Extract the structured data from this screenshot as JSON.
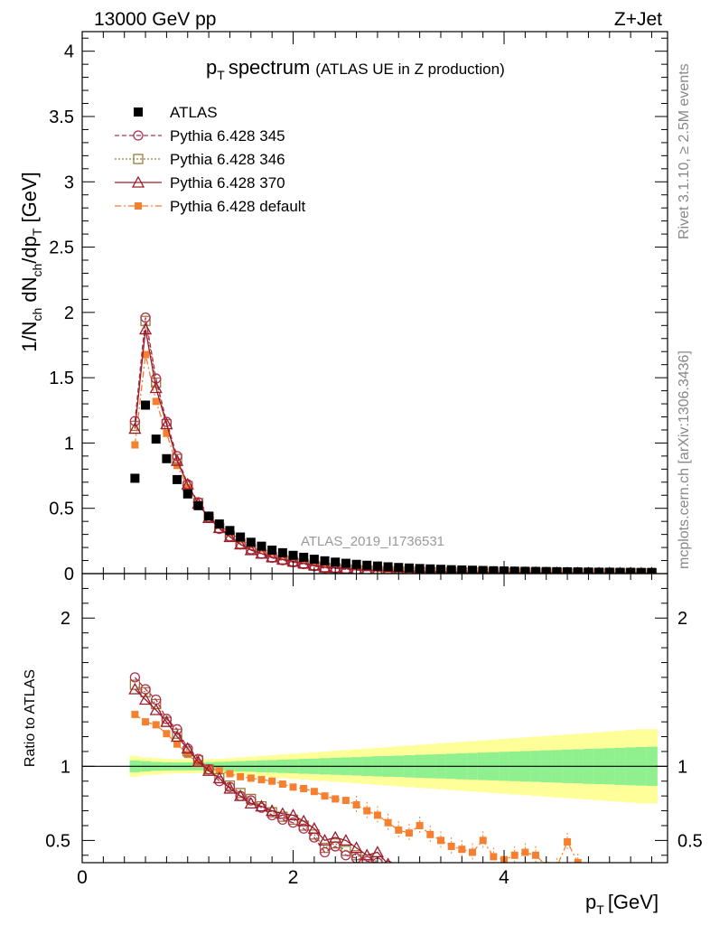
{
  "header": {
    "energy_label": "13000 GeV pp",
    "process_label": "Z+Jet"
  },
  "side_text": {
    "rivet": "Rivet 3.1.10, ≥ 2.5M events",
    "mcplots": "mcplots.cern.ch [arXiv:1306.3436]"
  },
  "chart_data": {
    "type": "scatter",
    "title_main": "p",
    "title_sub": "T",
    "title_word": "spectrum",
    "title_note": "(ATLAS UE in Z production)",
    "watermark": "ATLAS_2019_I1736531",
    "xlabel": "p",
    "xlabel_sub": "T",
    "xlabel_unit": "[GeV]",
    "ylabel": "1/N_ch dN_ch/dp_T [GeV]",
    "ratio_ylabel": "Ratio to ATLAS",
    "xlim": [
      0,
      5.55
    ],
    "main_ylim": [
      0,
      4.15
    ],
    "ratio_ylim": [
      0.35,
      2.3
    ],
    "x_ticks": [
      "0",
      "2",
      "4"
    ],
    "main_y_ticks": [
      "0",
      "0.5",
      "1",
      "1.5",
      "2",
      "2.5",
      "3",
      "3.5",
      "4"
    ],
    "ratio_y_ticks": [
      "0.5",
      "1",
      "2"
    ],
    "x": [
      0.5,
      0.6,
      0.7,
      0.8,
      0.9,
      1.0,
      1.1,
      1.2,
      1.3,
      1.4,
      1.5,
      1.6,
      1.7,
      1.8,
      1.9,
      2.0,
      2.1,
      2.2,
      2.3,
      2.4,
      2.5,
      2.6,
      2.7,
      2.8,
      2.9,
      3.0,
      3.1,
      3.2,
      3.3,
      3.4,
      3.5,
      3.6,
      3.7,
      3.8,
      3.9,
      4.0,
      4.1,
      4.2,
      4.3,
      4.4,
      4.5,
      4.6,
      4.7,
      4.8,
      4.9,
      5.0,
      5.1,
      5.2,
      5.3,
      5.4
    ],
    "legend": [
      {
        "name": "ATLAS",
        "color": "#000000"
      },
      {
        "name": "Pythia 6.428 345",
        "color": "#b03050"
      },
      {
        "name": "Pythia 6.428 346",
        "color": "#9a7a3a"
      },
      {
        "name": "Pythia 6.428 370",
        "color": "#9c1c2c"
      },
      {
        "name": "Pythia 6.428 default",
        "color": "#f58030"
      }
    ],
    "atlas": [
      0.73,
      1.29,
      1.03,
      0.88,
      0.72,
      0.61,
      0.52,
      0.44,
      0.38,
      0.33,
      0.28,
      0.24,
      0.21,
      0.18,
      0.16,
      0.14,
      0.125,
      0.11,
      0.098,
      0.088,
      0.079,
      0.071,
      0.064,
      0.058,
      0.052,
      0.047,
      0.043,
      0.039,
      0.036,
      0.033,
      0.03,
      0.028,
      0.026,
      0.024,
      0.022,
      0.02,
      0.019,
      0.018,
      0.017,
      0.016,
      0.015,
      0.014,
      0.013,
      0.012,
      0.011,
      0.011,
      0.01,
      0.01,
      0.009,
      0.009
    ],
    "ratios": {
      "p345": [
        1.6,
        1.52,
        1.45,
        1.32,
        1.25,
        1.12,
        1.05,
        0.98,
        0.9,
        0.86,
        0.8,
        0.77,
        0.72,
        0.67,
        0.64,
        0.62,
        0.58,
        0.52,
        0.42,
        0.46,
        0.4,
        0.38,
        0.36,
        0.35,
        0.33,
        0.31
      ],
      "p346": [
        1.55,
        1.5,
        1.42,
        1.3,
        1.22,
        1.1,
        1.04,
        0.98,
        0.92,
        0.87,
        0.82,
        0.78,
        0.73,
        0.69,
        0.66,
        0.64,
        0.6,
        0.54,
        0.45,
        0.48,
        0.43,
        0.4,
        0.37,
        0.36
      ],
      "p370": [
        1.52,
        1.45,
        1.38,
        1.3,
        1.2,
        1.12,
        1.03,
        0.97,
        0.92,
        0.85,
        0.8,
        0.75,
        0.73,
        0.7,
        0.68,
        0.67,
        0.63,
        0.58,
        0.5,
        0.52,
        0.5,
        0.45,
        0.4,
        0.42,
        0.34
      ],
      "pdefault": [
        1.35,
        1.3,
        1.28,
        1.22,
        1.15,
        1.08,
        1.02,
        0.99,
        0.97,
        0.95,
        0.93,
        0.92,
        0.91,
        0.9,
        0.88,
        0.86,
        0.85,
        0.83,
        0.8,
        0.78,
        0.77,
        0.74,
        0.7,
        0.67,
        0.62,
        0.57,
        0.55,
        0.6,
        0.54,
        0.5,
        0.46,
        0.44,
        0.42,
        0.5,
        0.39,
        0.37,
        0.4,
        0.42,
        0.4,
        0.33,
        0.32,
        0.49,
        0.35
      ]
    },
    "band_green_half": [
      0.04,
      0.035,
      0.03,
      0.028,
      0.027,
      0.027,
      0.027,
      0.028,
      0.03,
      0.032,
      0.035,
      0.037,
      0.04,
      0.042,
      0.045,
      0.047,
      0.05,
      0.052,
      0.055,
      0.057,
      0.06,
      0.062,
      0.065,
      0.068,
      0.07,
      0.072,
      0.075,
      0.078,
      0.08,
      0.082,
      0.085,
      0.088,
      0.09,
      0.093,
      0.095,
      0.098,
      0.1,
      0.103,
      0.105,
      0.108,
      0.11,
      0.113,
      0.115,
      0.118,
      0.12,
      0.122,
      0.125,
      0.128,
      0.13,
      0.132
    ],
    "band_yellow_half": [
      0.07,
      0.06,
      0.055,
      0.05,
      0.048,
      0.047,
      0.047,
      0.048,
      0.05,
      0.055,
      0.06,
      0.065,
      0.07,
      0.075,
      0.08,
      0.085,
      0.09,
      0.095,
      0.1,
      0.105,
      0.11,
      0.115,
      0.12,
      0.125,
      0.13,
      0.135,
      0.14,
      0.145,
      0.15,
      0.155,
      0.16,
      0.165,
      0.17,
      0.175,
      0.18,
      0.185,
      0.19,
      0.195,
      0.2,
      0.205,
      0.21,
      0.215,
      0.22,
      0.225,
      0.23,
      0.235,
      0.24,
      0.245,
      0.25,
      0.25
    ]
  }
}
